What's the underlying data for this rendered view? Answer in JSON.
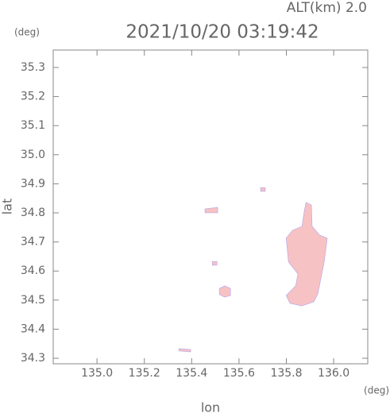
{
  "chart_data": {
    "type": "echo-map",
    "title": "2021/10/20 03:19:42",
    "subtitle": "ALT(km) 2.0",
    "x_label": "lon",
    "y_label": "lat",
    "x_unit": "(deg)",
    "y_unit": "(deg)",
    "color": "#f6c2c4",
    "edge_color": "#8080ff",
    "xlim": [
      134.815,
      136.144
    ],
    "ylim": [
      34.281,
      35.36
    ],
    "xticks": [
      {
        "value": 135,
        "label": "135.0"
      },
      135.2,
      135.4,
      135.6,
      135.8,
      {
        "value": 136,
        "label": "136.0"
      }
    ],
    "yticks": [
      34.3,
      34.4,
      34.5,
      34.6,
      34.7,
      34.8,
      34.9,
      {
        "value": 35,
        "label": "35.0"
      },
      35.1,
      35.2,
      35.3
    ],
    "echoes": [
      {
        "lon": [
          135.883,
          135.906,
          135.909,
          135.94,
          135.973,
          135.96,
          135.95,
          135.933,
          135.916,
          135.866,
          135.815,
          135.799,
          135.839,
          135.849,
          135.809,
          135.799,
          135.826,
          135.866,
          135.876
        ],
        "lat": [
          34.836,
          34.827,
          34.754,
          34.724,
          34.713,
          34.631,
          34.59,
          34.521,
          34.494,
          34.48,
          34.489,
          34.516,
          34.549,
          34.59,
          34.631,
          34.713,
          34.74,
          34.754,
          34.808
        ]
      },
      {
        "lon": [
          135.517,
          135.54,
          135.564,
          135.564,
          135.54,
          135.517
        ],
        "lat": [
          34.54,
          34.549,
          34.54,
          34.516,
          34.51,
          34.519
        ]
      },
      {
        "lon": [
          135.346,
          135.396,
          135.396,
          135.346
        ],
        "lat": [
          34.333,
          34.33,
          34.322,
          34.325
        ]
      },
      {
        "lon": [
          135.456,
          135.51,
          135.51,
          135.456
        ],
        "lat": [
          34.814,
          34.819,
          34.8,
          34.8
        ]
      },
      {
        "lon": [
          135.487,
          135.507,
          135.507,
          135.487
        ],
        "lat": [
          34.633,
          34.633,
          34.62,
          34.62
        ]
      },
      {
        "lon": [
          135.691,
          135.711,
          135.711,
          135.691
        ],
        "lat": [
          34.887,
          34.887,
          34.874,
          34.874
        ]
      }
    ]
  }
}
